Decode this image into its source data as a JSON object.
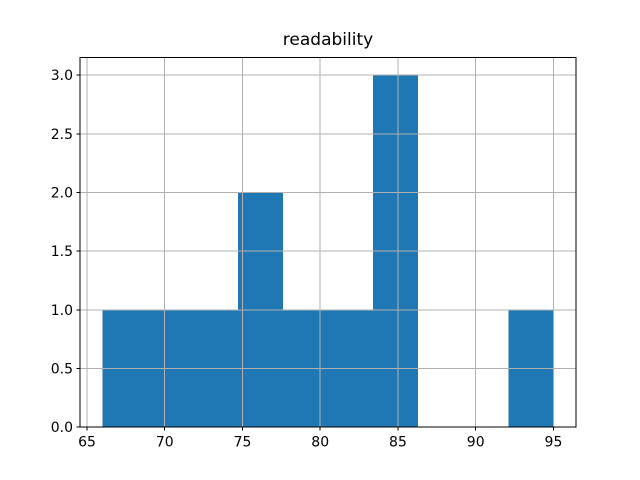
{
  "chart_data": {
    "type": "bar",
    "title": "readability",
    "xlabel": "",
    "ylabel": "",
    "bin_edges": [
      66.0,
      68.9,
      71.8,
      74.7,
      77.6,
      80.5,
      83.4,
      86.3,
      89.2,
      92.1,
      95.0
    ],
    "counts": [
      1,
      1,
      1,
      2,
      1,
      1,
      3,
      0,
      0,
      1
    ],
    "xticks": [
      65,
      70,
      75,
      80,
      85,
      90,
      95
    ],
    "xtick_labels": [
      "65",
      "70",
      "75",
      "80",
      "85",
      "90",
      "95"
    ],
    "yticks": [
      0.0,
      0.5,
      1.0,
      1.5,
      2.0,
      2.5,
      3.0
    ],
    "ytick_labels": [
      "0.0",
      "0.5",
      "1.0",
      "1.5",
      "2.0",
      "2.5",
      "3.0"
    ],
    "xlim": [
      64.55,
      96.45
    ],
    "ylim": [
      0,
      3.15
    ],
    "grid": true,
    "grid_over_bars": true,
    "legend": false,
    "bar_color": "#1f77b4",
    "grid_color": "#b0b0b0",
    "spine_color": "#000000",
    "background_color": "#ffffff"
  }
}
